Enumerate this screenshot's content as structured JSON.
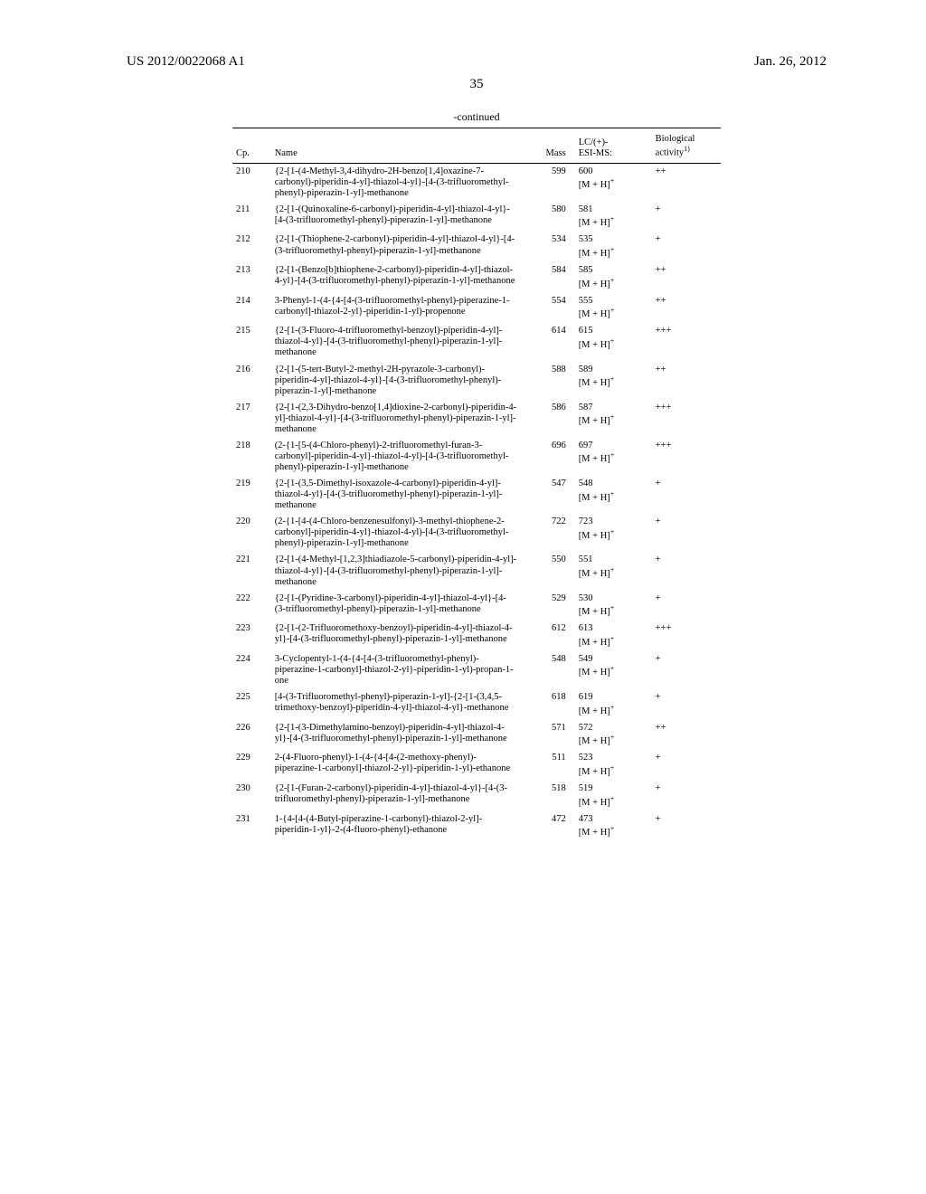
{
  "header": {
    "pub_number": "US 2012/0022068 A1",
    "pub_date": "Jan. 26, 2012",
    "page_number": "35"
  },
  "table": {
    "continued_label": "-continued",
    "columns": {
      "cp": "Cp.",
      "name": "Name",
      "mass": "Mass",
      "esi_line1": "LC/(+)-",
      "esi_line2": "ESI-MS:",
      "bio_line1": "Biological",
      "bio_line2_prefix": "activity",
      "bio_line2_sup": "1)"
    },
    "mh_label": "[M + H]",
    "rows": [
      {
        "cp": "210",
        "name": "{2-[1-(4-Methyl-3,4-dihydro-2H-benzo[1,4]oxazine-7-carbonyl)-piperidin-4-yl]-thiazol-4-yl}-[4-(3-trifluoromethyl-phenyl)-piperazin-1-yl]-methanone",
        "mass": "599",
        "esi": "600",
        "bio": "++"
      },
      {
        "cp": "211",
        "name": "{2-[1-(Quinoxaline-6-carbonyl)-piperidin-4-yl]-thiazol-4-yl}-[4-(3-trifluoromethyl-phenyl)-piperazin-1-yl]-methanone",
        "mass": "580",
        "esi": "581",
        "bio": "+"
      },
      {
        "cp": "212",
        "name": "{2-[1-(Thiophene-2-carbonyl)-piperidin-4-yl]-thiazol-4-yl}-[4-(3-trifluoromethyl-phenyl)-piperazin-1-yl]-methanone",
        "mass": "534",
        "esi": "535",
        "bio": "+"
      },
      {
        "cp": "213",
        "name": "{2-[1-(Benzo[b]thiophene-2-carbonyl)-piperidin-4-yl]-thiazol-4-yl}-[4-(3-trifluoromethyl-phenyl)-piperazin-1-yl]-methanone",
        "mass": "584",
        "esi": "585",
        "bio": "++"
      },
      {
        "cp": "214",
        "name": "3-Phenyl-1-(4-{4-[4-(3-trifluoromethyl-phenyl)-piperazine-1-carbonyl]-thiazol-2-yl}-piperidin-1-yl)-propenone",
        "mass": "554",
        "esi": "555",
        "bio": "++"
      },
      {
        "cp": "215",
        "name": "{2-[1-(3-Fluoro-4-trifluoromethyl-benzoyl)-piperidin-4-yl]-thiazol-4-yl}-[4-(3-trifluoromethyl-phenyl)-piperazin-1-yl]-methanone",
        "mass": "614",
        "esi": "615",
        "bio": "+++"
      },
      {
        "cp": "216",
        "name": "{2-[1-(5-tert-Butyl-2-methyl-2H-pyrazole-3-carbonyl)-piperidin-4-yl]-thiazol-4-yl}-[4-(3-trifluoromethyl-phenyl)-piperazin-1-yl]-methanone",
        "mass": "588",
        "esi": "589",
        "bio": "++"
      },
      {
        "cp": "217",
        "name": "{2-[1-(2,3-Dihydro-benzo[1,4]dioxine-2-carbonyl)-piperidin-4-yl]-thiazol-4-yl}-[4-(3-trifluoromethyl-phenyl)-piperazin-1-yl]-methanone",
        "mass": "586",
        "esi": "587",
        "bio": "+++"
      },
      {
        "cp": "218",
        "name": "(2-{1-[5-(4-Chloro-phenyl)-2-trifluoromethyl-furan-3-carbonyl]-piperidin-4-yl}-thiazol-4-yl)-[4-(3-trifluoromethyl-phenyl)-piperazin-1-yl]-methanone",
        "mass": "696",
        "esi": "697",
        "bio": "+++"
      },
      {
        "cp": "219",
        "name": "{2-[1-(3,5-Dimethyl-isoxazole-4-carbonyl)-piperidin-4-yl]-thiazol-4-yl}-[4-(3-trifluoromethyl-phenyl)-piperazin-1-yl]-methanone",
        "mass": "547",
        "esi": "548",
        "bio": "+"
      },
      {
        "cp": "220",
        "name": "(2-{1-[4-(4-Chloro-benzenesulfonyl)-3-methyl-thiophene-2-carbonyl]-piperidin-4-yl}-thiazol-4-yl)-[4-(3-trifluoromethyl-phenyl)-piperazin-1-yl]-methanone",
        "mass": "722",
        "esi": "723",
        "bio": "+"
      },
      {
        "cp": "221",
        "name": "{2-[1-(4-Methyl-[1,2,3]thiadiazole-5-carbonyl)-piperidin-4-yl]-thiazol-4-yl}-[4-(3-trifluoromethyl-phenyl)-piperazin-1-yl]-methanone",
        "mass": "550",
        "esi": "551",
        "bio": "+"
      },
      {
        "cp": "222",
        "name": "{2-[1-(Pyridine-3-carbonyl)-piperidin-4-yl]-thiazol-4-yl}-[4-(3-trifluoromethyl-phenyl)-piperazin-1-yl]-methanone",
        "mass": "529",
        "esi": "530",
        "bio": "+"
      },
      {
        "cp": "223",
        "name": "{2-[1-(2-Trifluoromethoxy-benzoyl)-piperidin-4-yl]-thiazol-4-yl}-[4-(3-trifluoromethyl-phenyl)-piperazin-1-yl]-methanone",
        "mass": "612",
        "esi": "613",
        "bio": "+++"
      },
      {
        "cp": "224",
        "name": "3-Cyclopentyl-1-(4-{4-[4-(3-trifluoromethyl-phenyl)-piperazine-1-carbonyl]-thiazol-2-yl}-piperidin-1-yl)-propan-1-one",
        "mass": "548",
        "esi": "549",
        "bio": "+"
      },
      {
        "cp": "225",
        "name": "[4-(3-Trifluoromethyl-phenyl)-piperazin-1-yl]-{2-[1-(3,4,5-trimethoxy-benzoyl)-piperidin-4-yl]-thiazol-4-yl}-methanone",
        "mass": "618",
        "esi": "619",
        "bio": "+"
      },
      {
        "cp": "226",
        "name": "{2-[1-(3-Dimethylamino-benzoyl)-piperidin-4-yl]-thiazol-4-yl}-[4-(3-trifluoromethyl-phenyl)-piperazin-1-yl]-methanone",
        "mass": "571",
        "esi": "572",
        "bio": "++"
      },
      {
        "cp": "229",
        "name": "2-(4-Fluoro-phenyl)-1-(4-{4-[4-(2-methoxy-phenyl)-piperazine-1-carbonyl]-thiazol-2-yl}-piperidin-1-yl)-ethanone",
        "mass": "511",
        "esi": "523",
        "bio": "+"
      },
      {
        "cp": "230",
        "name": "{2-[1-(Furan-2-carbonyl)-piperidin-4-yl]-thiazol-4-yl}-[4-(3-trifluoromethyl-phenyl)-piperazin-1-yl]-methanone",
        "mass": "518",
        "esi": "519",
        "bio": "+"
      },
      {
        "cp": "231",
        "name": "1-{4-[4-(4-Butyl-piperazine-1-carbonyl)-thiazol-2-yl]-piperidin-1-yl}-2-(4-fluoro-phenyl)-ethanone",
        "mass": "472",
        "esi": "473",
        "bio": "+"
      }
    ]
  }
}
